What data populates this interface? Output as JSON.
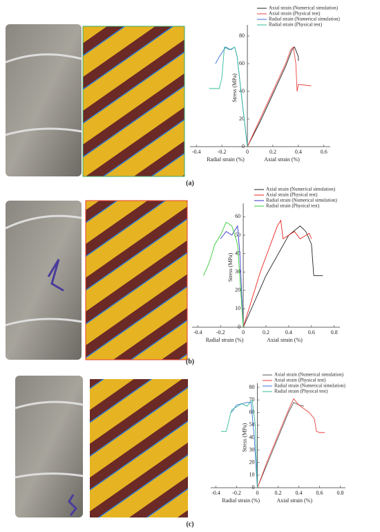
{
  "chart_data": [
    {
      "type": "line",
      "panel_label": "(a)",
      "ylabel": "Stress (MPa)",
      "xlabel_radial": "Radial strain (%)",
      "xlabel_axial": "Axial strain (%)",
      "xlim": [
        -0.45,
        0.65
      ],
      "xticks": [
        -0.4,
        -0.2,
        0,
        0.2,
        0.4,
        0.6
      ],
      "ylim": [
        0,
        85
      ],
      "yticks": [
        0,
        20,
        40,
        60,
        80
      ],
      "series": [
        {
          "name": "Axial strain (Numerical simulation)",
          "color": "#222222",
          "x": [
            0,
            0.1,
            0.2,
            0.3,
            0.35,
            0.37,
            0.4,
            0.4
          ],
          "values": [
            0,
            18,
            38,
            58,
            70,
            72,
            65,
            62
          ]
        },
        {
          "name": "Axial strain (Physical test)",
          "color": "#e8413c",
          "x": [
            0,
            0.1,
            0.2,
            0.3,
            0.34,
            0.36,
            0.38,
            0.39,
            0.4,
            0.5
          ],
          "values": [
            0,
            20,
            40,
            60,
            70,
            72,
            60,
            40,
            45,
            44
          ]
        },
        {
          "name": "Radial strain (Numerical simulation)",
          "color": "#3b6fd6",
          "x": [
            0,
            -0.05,
            -0.08,
            -0.1,
            -0.13,
            -0.17,
            -0.22,
            -0.25
          ],
          "values": [
            0,
            40,
            65,
            72,
            70,
            72,
            65,
            60
          ]
        },
        {
          "name": "Radial strain (Physical test)",
          "color": "#33bb99",
          "x": [
            0,
            -0.05,
            -0.08,
            -0.1,
            -0.14,
            -0.18,
            -0.2,
            -0.22,
            -0.3
          ],
          "values": [
            0,
            40,
            65,
            72,
            70,
            72,
            50,
            42,
            42
          ]
        }
      ]
    },
    {
      "type": "line",
      "panel_label": "(b)",
      "ylabel": "Stress (MPa)",
      "xlabel_radial": "Radial strain (%)",
      "xlabel_axial": "Axial strain (%)",
      "xlim": [
        -0.45,
        0.85
      ],
      "xticks": [
        -0.4,
        -0.2,
        0,
        0.2,
        0.4,
        0.6,
        0.8
      ],
      "ylim": [
        0,
        65
      ],
      "yticks": [
        0,
        10,
        20,
        30,
        40,
        50,
        60
      ],
      "series": [
        {
          "name": "Axial strain (Numerical simulation)",
          "color": "#222222",
          "x": [
            0,
            0.2,
            0.4,
            0.5,
            0.55,
            0.6,
            0.62,
            0.7
          ],
          "values": [
            0,
            28,
            50,
            55,
            52,
            45,
            28,
            28
          ]
        },
        {
          "name": "Axial strain (Physical test)",
          "color": "#e8231c",
          "x": [
            0,
            0.15,
            0.3,
            0.33,
            0.35,
            0.45,
            0.5,
            0.58,
            0.6
          ],
          "values": [
            0,
            30,
            55,
            58,
            48,
            52,
            48,
            51,
            48
          ]
        },
        {
          "name": "Radial strain (Numerical simulation)",
          "color": "#3333cc",
          "x": [
            0,
            -0.03,
            -0.05,
            -0.1,
            -0.15,
            -0.2
          ],
          "values": [
            0,
            40,
            55,
            50,
            52,
            48
          ]
        },
        {
          "name": "Radial strain (Physical test)",
          "color": "#33cc33",
          "x": [
            0,
            -0.05,
            -0.1,
            -0.15,
            -0.2,
            -0.25,
            -0.3,
            -0.35
          ],
          "values": [
            0,
            45,
            55,
            57,
            50,
            45,
            35,
            28
          ]
        }
      ]
    },
    {
      "type": "line",
      "panel_label": "(c)",
      "ylabel": "Stress (MPa)",
      "xlabel_radial": "Radial strain (%)",
      "xlabel_axial": "Axial strain (%)",
      "xlim": [
        -0.45,
        0.85
      ],
      "xticks": [
        -0.4,
        -0.2,
        0,
        0.2,
        0.4,
        0.6,
        0.8
      ],
      "ylim": [
        0,
        80
      ],
      "yticks": [
        0,
        10,
        20,
        30,
        40,
        50,
        60,
        70,
        80
      ],
      "series": [
        {
          "name": "Axial strain (Numerical simulation)",
          "color": "#555555",
          "x": [
            0,
            0.1,
            0.2,
            0.3,
            0.35,
            0.4,
            0.45
          ],
          "values": [
            0,
            20,
            40,
            60,
            68,
            66,
            65
          ]
        },
        {
          "name": "Axial strain (Physical test)",
          "color": "#e8413c",
          "x": [
            0,
            0.1,
            0.2,
            0.3,
            0.35,
            0.4,
            0.5,
            0.55,
            0.57,
            0.6,
            0.65
          ],
          "values": [
            0,
            22,
            42,
            62,
            71,
            66,
            60,
            55,
            45,
            44,
            44
          ]
        },
        {
          "name": "Radial strain (Numerical simulation)",
          "color": "#3b6fd6",
          "x": [
            0,
            -0.03,
            -0.06,
            -0.1,
            -0.2,
            -0.25
          ],
          "values": [
            0,
            40,
            68,
            68,
            66,
            60
          ]
        },
        {
          "name": "Radial strain (Physical test)",
          "color": "#33bb99",
          "x": [
            0,
            -0.02,
            -0.05,
            -0.1,
            -0.15,
            -0.25,
            -0.3,
            -0.35
          ],
          "values": [
            0,
            50,
            70,
            65,
            67,
            62,
            45,
            45
          ]
        }
      ]
    }
  ]
}
